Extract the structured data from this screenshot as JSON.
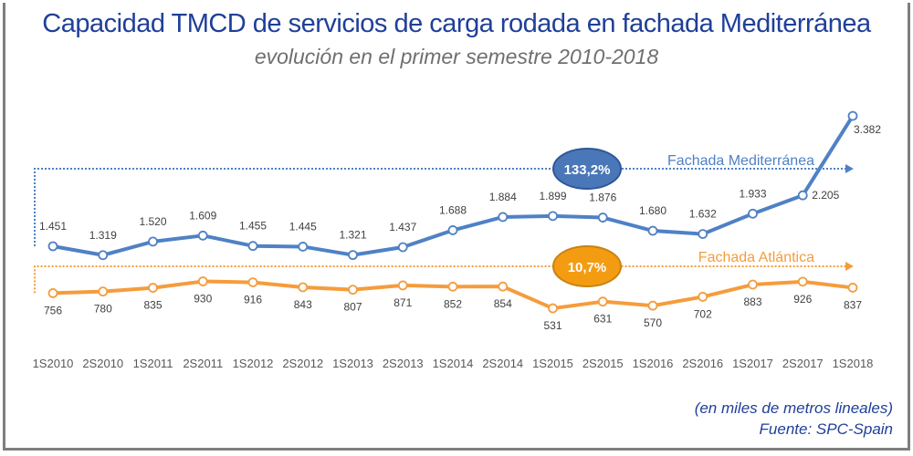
{
  "chart_data": {
    "type": "line",
    "title": "Capacidad TMCD de servicios de carga rodada en fachada Mediterránea",
    "subtitle": "evolución en el primer semestre 2010-2018",
    "categories": [
      "1S2010",
      "2S2010",
      "1S2011",
      "2S2011",
      "1S2012",
      "2S2012",
      "1S2013",
      "2S2013",
      "1S2014",
      "2S2014",
      "1S2015",
      "2S2015",
      "1S2016",
      "2S2016",
      "1S2017",
      "2S2017",
      "1S2018"
    ],
    "series": [
      {
        "name": "Fachada Mediterránea",
        "color": "#4f81c5",
        "growth": "133,2%",
        "values": [
          1451,
          1319,
          1520,
          1609,
          1455,
          1445,
          1321,
          1437,
          1688,
          1884,
          1899,
          1876,
          1680,
          1632,
          1933,
          2205,
          3382
        ],
        "labels": [
          "1.451",
          "1.319",
          "1.520",
          "1.609",
          "1.455",
          "1.445",
          "1.321",
          "1.437",
          "1.688",
          "1.884",
          "1.899",
          "1.876",
          "1.680",
          "1.632",
          "1.933",
          "2.205",
          "3.382"
        ]
      },
      {
        "name": "Fachada Atlántica",
        "color": "#f59c3c",
        "growth": "10,7%",
        "values": [
          756,
          780,
          835,
          930,
          916,
          843,
          807,
          871,
          852,
          854,
          531,
          631,
          570,
          702,
          883,
          926,
          837
        ],
        "labels": [
          "756",
          "780",
          "835",
          "930",
          "916",
          "843",
          "807",
          "871",
          "852",
          "854",
          "531",
          "631",
          "570",
          "702",
          "883",
          "926",
          "837"
        ]
      }
    ],
    "unit_note": "(en miles de metros lineales)",
    "source": "Fuente: SPC-Spain"
  }
}
